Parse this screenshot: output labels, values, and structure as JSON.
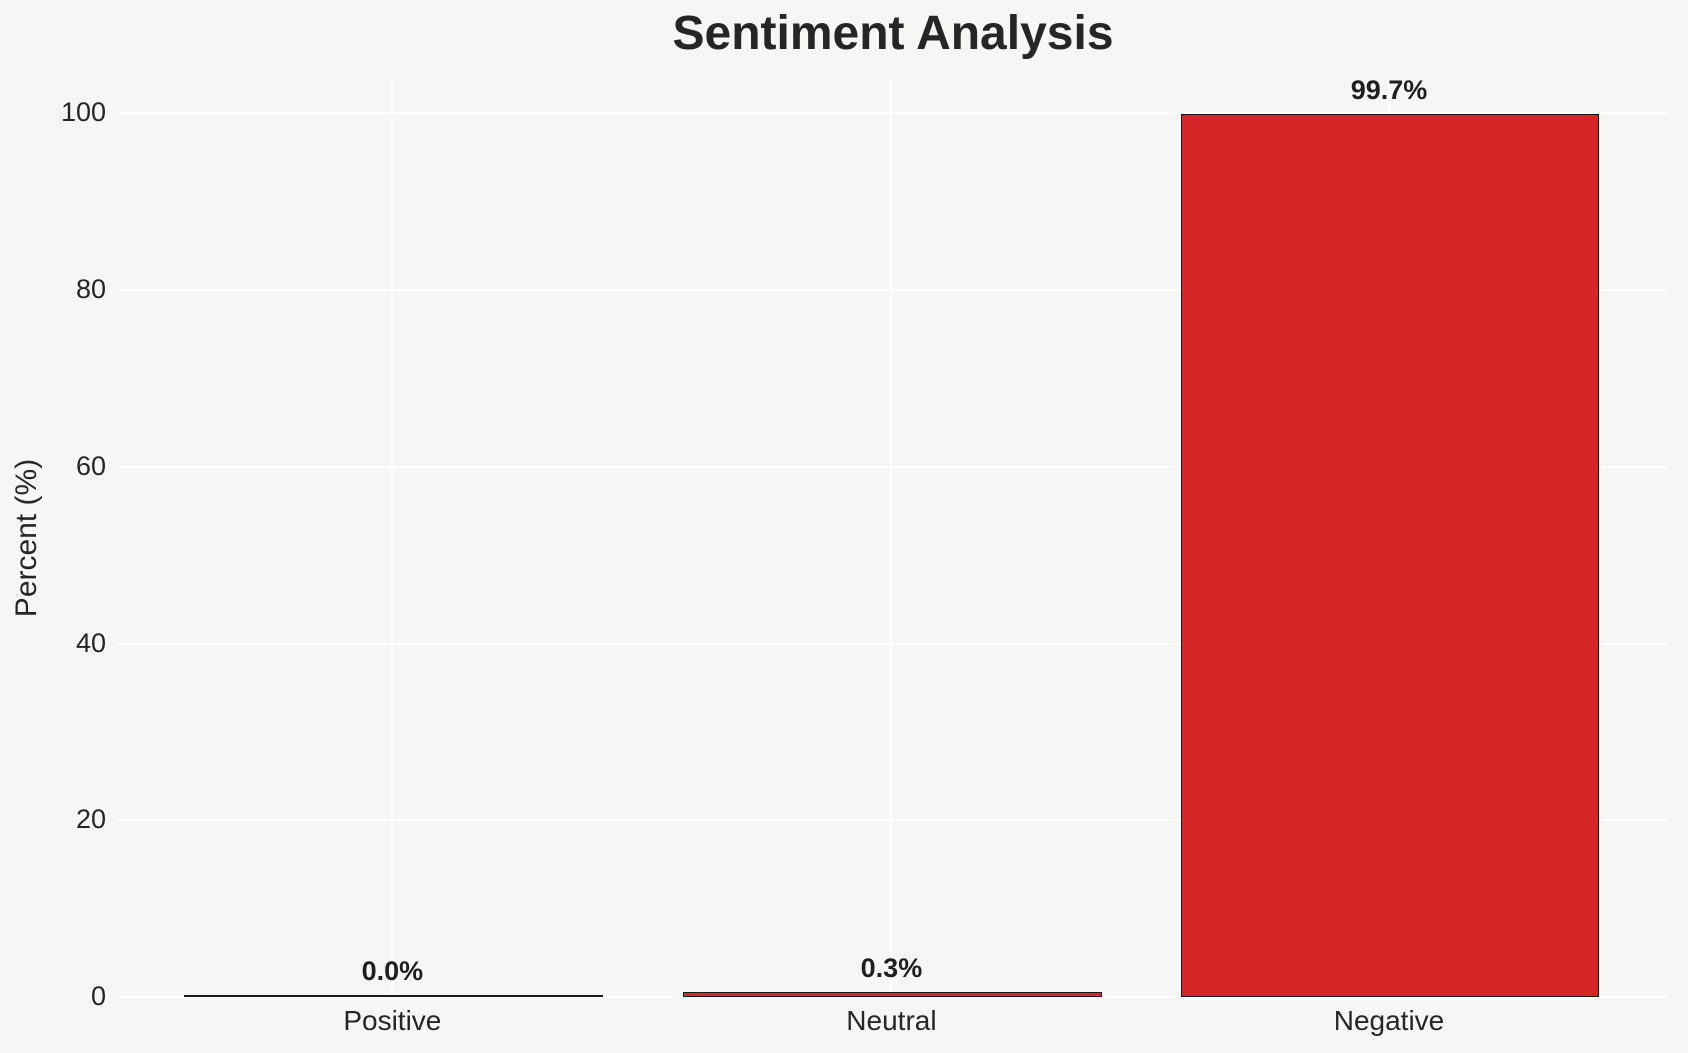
{
  "figure": {
    "background_color": "#f6f6f5",
    "grid_color": "#ffffff",
    "text_color": "#262626"
  },
  "chart_data": {
    "type": "bar",
    "title": "Sentiment Analysis",
    "categories": [
      "Positive",
      "Neutral",
      "Negative"
    ],
    "values": [
      0.0,
      0.3,
      99.7
    ],
    "value_labels": [
      "0.0%",
      "0.3%",
      "99.7%"
    ],
    "xlabel": "",
    "ylabel": "Percent (%)",
    "ylim": [
      0,
      104
    ],
    "yticks": [
      0,
      20,
      40,
      60,
      80,
      100
    ],
    "grid": "both",
    "legend_position": "none",
    "bar_color": "#d62728",
    "bar_edge_color": "#1a1a1a"
  }
}
